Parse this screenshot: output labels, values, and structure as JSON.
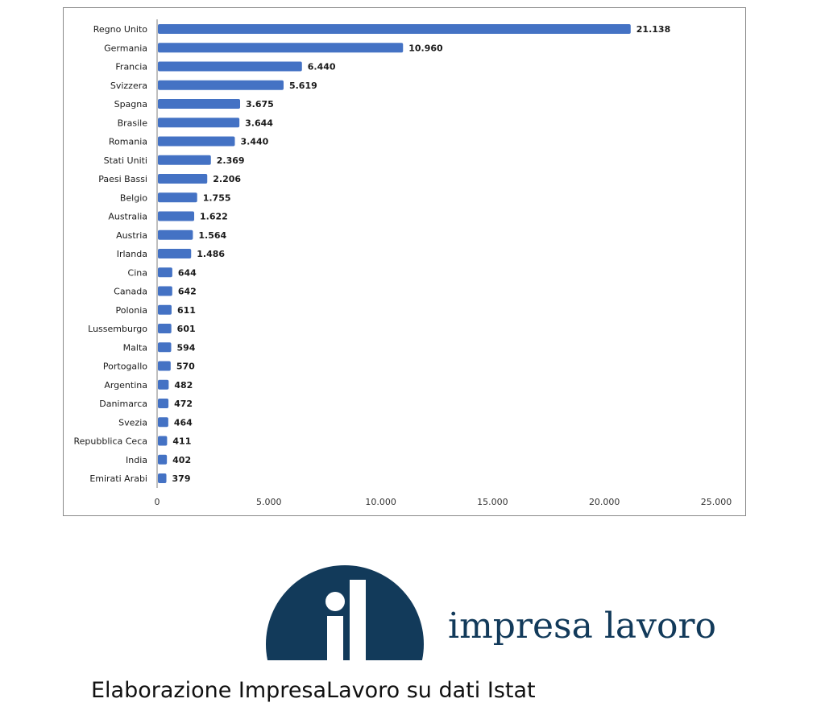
{
  "chart_data": {
    "type": "bar",
    "orientation": "horizontal",
    "categories": [
      "Regno Unito",
      "Germania",
      "Francia",
      "Svizzera",
      "Spagna",
      "Brasile",
      "Romania",
      "Stati Uniti",
      "Paesi Bassi",
      "Belgio",
      "Australia",
      "Austria",
      "Irlanda",
      "Cina",
      "Canada",
      "Polonia",
      "Lussemburgo",
      "Malta",
      "Portogallo",
      "Argentina",
      "Danimarca",
      "Svezia",
      "Repubblica Ceca",
      "India",
      "Emirati Arabi"
    ],
    "values": [
      21138,
      10960,
      6440,
      5619,
      3675,
      3644,
      3440,
      2369,
      2206,
      1755,
      1622,
      1564,
      1486,
      644,
      642,
      611,
      601,
      594,
      570,
      482,
      472,
      464,
      411,
      402,
      379
    ],
    "value_labels": [
      "21.138",
      "10.960",
      "6.440",
      "5.619",
      "3.675",
      "3.644",
      "3.440",
      "2.369",
      "2.206",
      "1.755",
      "1.622",
      "1.564",
      "1.486",
      "644",
      "642",
      "611",
      "601",
      "594",
      "570",
      "482",
      "472",
      "464",
      "411",
      "402",
      "379"
    ],
    "xlim": [
      0,
      25000
    ],
    "x_ticks": [
      0,
      5000,
      10000,
      15000,
      20000,
      25000
    ],
    "x_tick_labels": [
      "0",
      "5.000",
      "10.000",
      "15.000",
      "20.000",
      "25.000"
    ],
    "grid": false,
    "bar_color": "#4472c4"
  },
  "logo": {
    "text": "impresa lavoro",
    "color": "#123a5a"
  },
  "caption": "Elaborazione ImpresaLavoro su dati Istat"
}
